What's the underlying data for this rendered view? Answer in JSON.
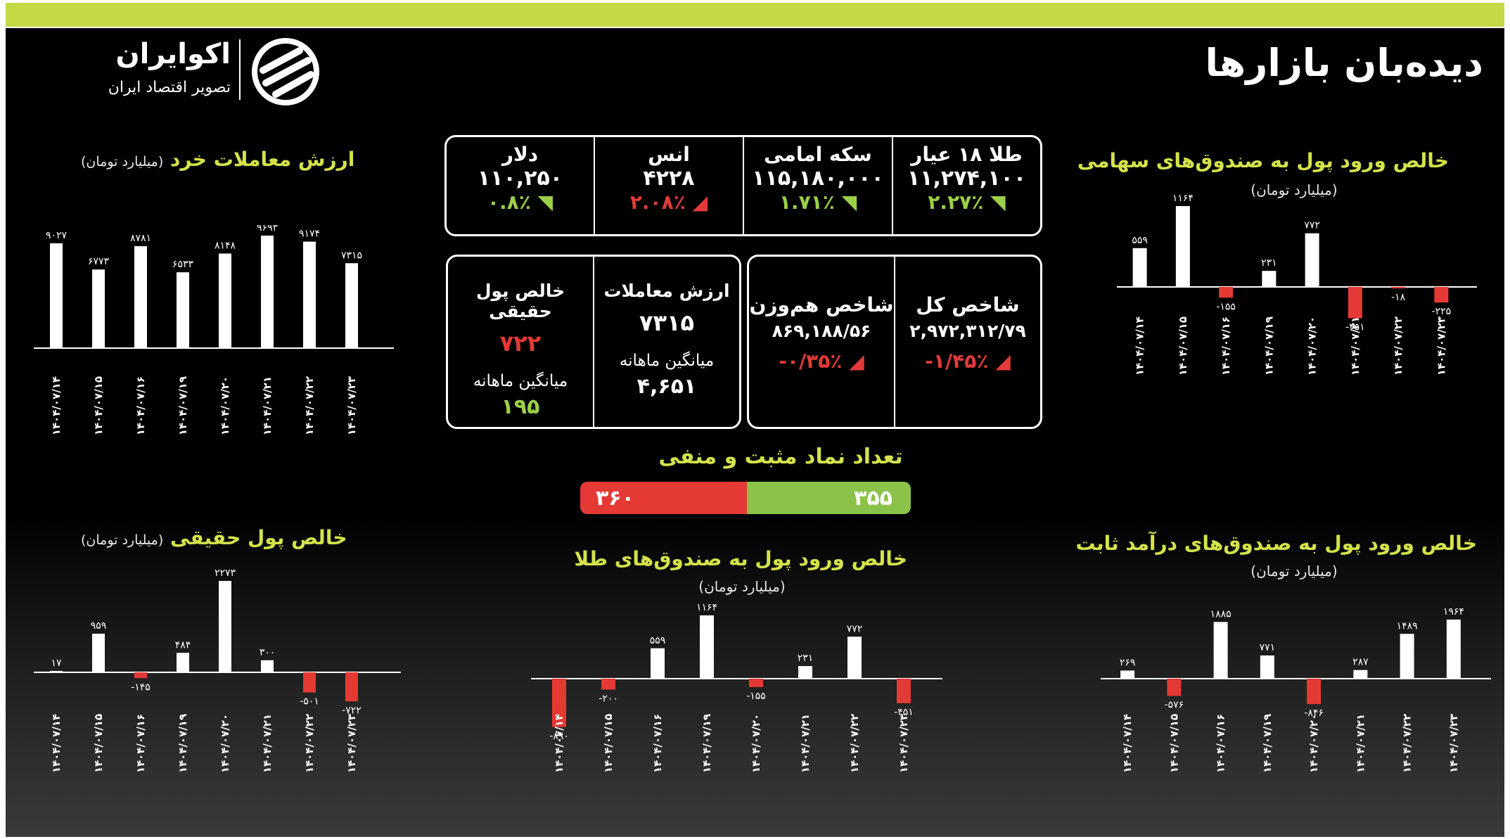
{
  "page": {
    "title": "دیده‌بان بازارها",
    "logo_name": "اکوایران",
    "logo_tagline": "تصویر اقتصاد ایران"
  },
  "colors": {
    "accent": "#c5d946",
    "positive": "#8bc34a",
    "negative": "#e53935",
    "bar": "#ffffff",
    "title": "#d3e34a"
  },
  "top_prices": [
    {
      "label": "طلا ۱۸ عیار",
      "value": "۱۱,۲۷۴,۱۰۰",
      "change": "۲.۲۷٪",
      "dir": "up"
    },
    {
      "label": "سکه امامی",
      "value": "۱۱۵,۱۸۰,۰۰۰",
      "change": "۱.۷۱٪",
      "dir": "up"
    },
    {
      "label": "انس",
      "value": "۴۲۲۸",
      "change": "۲.۰۸٪",
      "dir": "down"
    },
    {
      "label": "دلار",
      "value": "۱۱۰,۲۵۰",
      "change": "۰.۸٪",
      "dir": "up"
    }
  ],
  "index_box": [
    {
      "label": "شاخص کل",
      "value": "۲,۹۷۲,۳۱۲/۷۹",
      "change": "-۱/۴۵٪",
      "dir": "down"
    },
    {
      "label": "شاخص هم‌وزن",
      "value": "۸۶۹,۱۸۸/۵۶",
      "change": "-۰/۳۵٪",
      "dir": "down"
    }
  ],
  "trade_box": {
    "value_label": "ارزش معاملات",
    "value": "۷۳۱۵",
    "value_avg_label": "میانگین ماهانه",
    "value_avg": "۴,۶۵۱",
    "money_label": "خالص پول حقیقی",
    "money": "۷۲۲",
    "money_avg_label": "میانگین ماهانه",
    "money_avg": "۱۹۵"
  },
  "count": {
    "title": "تعداد نماد مثبت و منفی",
    "negative": 360,
    "positive": 355,
    "negative_label": "۳۶۰",
    "positive_label": "۳۵۵"
  },
  "chart_data": [
    {
      "id": "retail",
      "type": "bar",
      "title": "ارزش معاملات خرد",
      "unit": "(میلیارد تومان)",
      "categories": [
        "۱۴۰۴/۰۷/۱۴",
        "۱۴۰۴/۰۷/۱۵",
        "۱۴۰۴/۰۷/۱۶",
        "۱۴۰۴/۰۷/۱۹",
        "۱۴۰۴/۰۷/۲۰",
        "۱۴۰۴/۰۷/۲۱",
        "۱۴۰۴/۰۷/۲۲",
        "۱۴۰۴/۰۷/۲۳"
      ],
      "values": [
        9027,
        6773,
        8781,
        6533,
        8148,
        9693,
        9174,
        7315
      ],
      "labels": [
        "۹۰۲۷",
        "۶۷۷۳",
        "۸۷۸۱",
        "۶۵۳۳",
        "۸۱۴۸",
        "۹۶۹۳",
        "۹۱۷۴",
        "۷۳۱۵"
      ]
    },
    {
      "id": "equity",
      "type": "bar",
      "title": "خالص ورود پول به صندوق‌های سهامی",
      "unit": "(میلیارد تومان)",
      "categories": [
        "۱۴۰۴/۰۷/۱۴",
        "۱۴۰۴/۰۷/۱۵",
        "۱۴۰۴/۰۷/۱۶",
        "۱۴۰۴/۰۷/۱۹",
        "۱۴۰۴/۰۷/۲۰",
        "۱۴۰۴/۰۷/۲۱",
        "۱۴۰۴/۰۷/۲۲",
        "۱۴۰۴/۰۷/۲۳"
      ],
      "values": [
        559,
        1164,
        -155,
        231,
        772,
        -451,
        -18,
        -225
      ],
      "labels": [
        "۵۵۹",
        "۱۱۶۴",
        "-۱۵۵",
        "۲۳۱",
        "۷۷۲",
        "-۴۵۱",
        "-۱۸",
        "-۲۲۵"
      ]
    },
    {
      "id": "real_money",
      "type": "bar",
      "title": "خالص پول حقیقی",
      "unit": "(میلیارد تومان)",
      "categories": [
        "۱۴۰۴/۰۷/۱۴",
        "۱۴۰۴/۰۷/۱۵",
        "۱۴۰۴/۰۷/۱۶",
        "۱۴۰۴/۰۷/۱۹",
        "۱۴۰۴/۰۷/۲۰",
        "۱۴۰۴/۰۷/۲۱",
        "۱۴۰۴/۰۷/۲۲",
        "۱۴۰۴/۰۷/۲۳"
      ],
      "values": [
        17,
        959,
        -145,
        484,
        2273,
        300,
        -501,
        -722
      ],
      "labels": [
        "۱۷",
        "۹۵۹",
        "-۱۴۵",
        "۴۸۴",
        "۲۲۷۳",
        "۳۰۰",
        "-۵۰۱",
        "-۷۲۲"
      ]
    },
    {
      "id": "gold_funds",
      "type": "bar",
      "title": "خالص ورود پول به صندوق‌های طلا",
      "unit": "(میلیارد تومان)",
      "categories": [
        "۱۴۰۴/۰۷/۱۴",
        "۱۴۰۴/۰۷/۱۵",
        "۱۴۰۴/۰۷/۱۶",
        "۱۴۰۴/۰۷/۱۹",
        "۱۴۰۴/۰۷/۲۰",
        "۱۴۰۴/۰۷/۲۱",
        "۱۴۰۴/۰۷/۲۲",
        "۱۴۰۴/۰۷/۲۳"
      ],
      "values": [
        -890,
        -200,
        559,
        1164,
        -155,
        231,
        772,
        -451
      ],
      "labels": [
        "-۸۹۰",
        "-۲۰۰",
        "۵۵۹",
        "۱۱۶۴",
        "-۱۵۵",
        "۲۳۱",
        "۷۷۲",
        "-۴۵۱"
      ]
    },
    {
      "id": "fixed_income",
      "type": "bar",
      "title": "خالص ورود پول به صندوق‌های درآمد ثابت",
      "unit": "(میلیارد تومان)",
      "categories": [
        "۱۴۰۴/۰۷/۱۴",
        "۱۴۰۴/۰۷/۱۵",
        "۱۴۰۴/۰۷/۱۶",
        "۱۴۰۴/۰۷/۱۹",
        "۱۴۰۴/۰۷/۲۰",
        "۱۴۰۴/۰۷/۲۱",
        "۱۴۰۴/۰۷/۲۲",
        "۱۴۰۴/۰۷/۲۳"
      ],
      "values": [
        269,
        -576,
        1885,
        771,
        -846,
        287,
        1489,
        1964
      ],
      "labels": [
        "۲۶۹",
        "-۵۷۶",
        "۱۸۸۵",
        "۷۷۱",
        "-۸۴۶",
        "۲۸۷",
        "۱۴۸۹",
        "۱۹۶۴"
      ]
    }
  ]
}
